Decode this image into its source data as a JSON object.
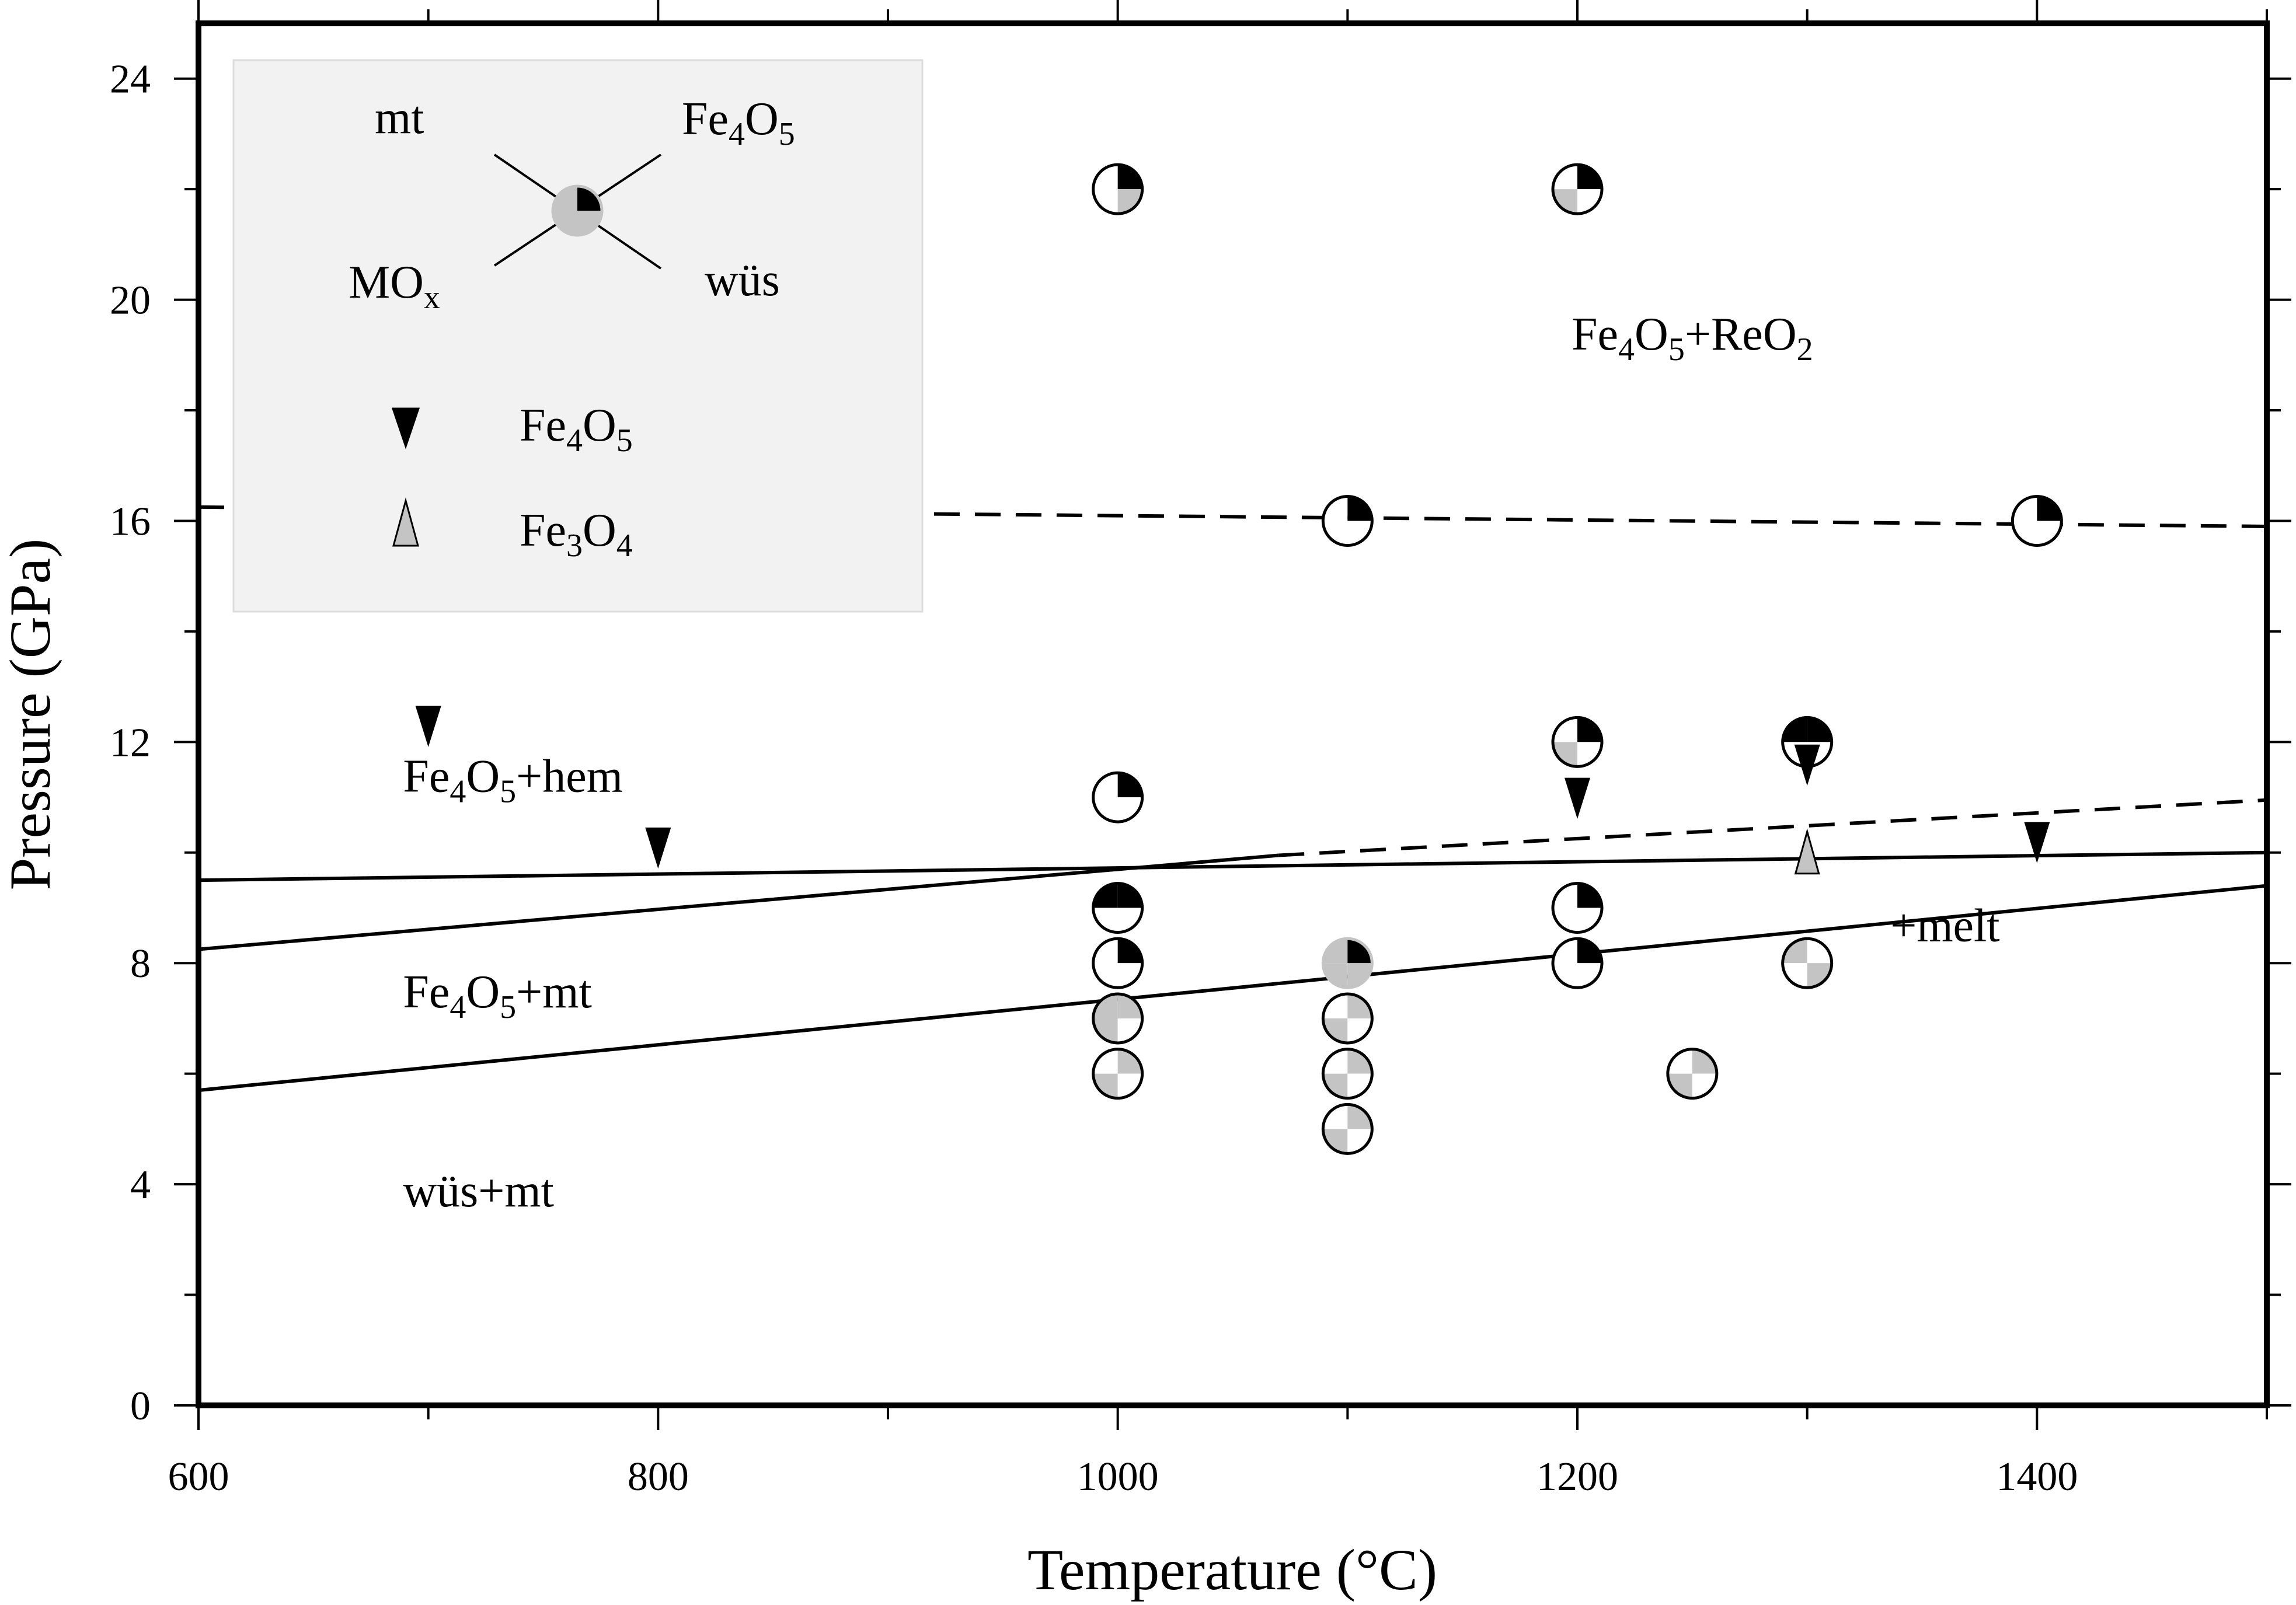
{
  "chart_data": {
    "type": "scatter",
    "xlabel": "Temperature (°C)",
    "ylabel": "Pressure (GPa)",
    "xlim": [
      600,
      1500
    ],
    "ylim": [
      0,
      25
    ],
    "xticks": [
      600,
      800,
      1000,
      1200,
      1400
    ],
    "yticks": [
      0,
      4,
      8,
      12,
      16,
      20,
      24
    ],
    "grid": false,
    "legend": {
      "placement": "top-left",
      "quadrant_labels": {
        "top_left": "mt",
        "top_right": "Fe4O5",
        "bottom_left": "MOx",
        "bottom_right": "wüs"
      },
      "markers": [
        {
          "symbol": "down-triangle",
          "color": "#000000",
          "label": "Fe4O5"
        },
        {
          "symbol": "up-triangle",
          "color": "#c4c4c4",
          "label": "Fe3O4"
        }
      ]
    },
    "colors": {
      "black": "#000000",
      "gray": "#c4c4c4",
      "white": "#ffffff",
      "legend_bg": "#f2f2f2"
    },
    "circle_quadrants_order": [
      "mt",
      "Fe4O5",
      "MOx",
      "wüs"
    ],
    "experiments": [
      {
        "T": 1000,
        "P": 22,
        "mt": "white",
        "Fe4O5": "black",
        "MOx": "white",
        "wüs": "gray"
      },
      {
        "T": 1200,
        "P": 22,
        "mt": "white",
        "Fe4O5": "black",
        "MOx": "gray",
        "wüs": "white"
      },
      {
        "T": 1100,
        "P": 16,
        "mt": "white",
        "Fe4O5": "black",
        "MOx": "white",
        "wüs": "white"
      },
      {
        "T": 1400,
        "P": 16,
        "mt": "white",
        "Fe4O5": "black",
        "MOx": "white",
        "wüs": "white"
      },
      {
        "T": 1200,
        "P": 12,
        "mt": "white",
        "Fe4O5": "black",
        "MOx": "gray",
        "wüs": "white"
      },
      {
        "T": 1300,
        "P": 12,
        "mt": "black",
        "Fe4O5": "black",
        "MOx": "white",
        "wüs": "white"
      },
      {
        "T": 1000,
        "P": 11,
        "mt": "white",
        "Fe4O5": "black",
        "MOx": "white",
        "wüs": "white"
      },
      {
        "T": 1000,
        "P": 9,
        "mt": "black",
        "Fe4O5": "black",
        "MOx": "white",
        "wüs": "white"
      },
      {
        "T": 1200,
        "P": 9,
        "mt": "white",
        "Fe4O5": "black",
        "MOx": "white",
        "wüs": "white"
      },
      {
        "T": 1000,
        "P": 8,
        "mt": "white",
        "Fe4O5": "black",
        "MOx": "white",
        "wüs": "white"
      },
      {
        "T": 1100,
        "P": 8,
        "mt": "gray",
        "Fe4O5": "black",
        "MOx": "gray",
        "wüs": "gray"
      },
      {
        "T": 1200,
        "P": 8,
        "mt": "white",
        "Fe4O5": "black",
        "MOx": "white",
        "wüs": "white"
      },
      {
        "T": 1300,
        "P": 8,
        "mt": "gray",
        "Fe4O5": "white",
        "MOx": "white",
        "wüs": "gray"
      },
      {
        "T": 1000,
        "P": 7,
        "mt": "gray",
        "Fe4O5": "gray",
        "MOx": "gray",
        "wüs": "white"
      },
      {
        "T": 1100,
        "P": 7,
        "mt": "white",
        "Fe4O5": "gray",
        "MOx": "gray",
        "wüs": "white"
      },
      {
        "T": 1000,
        "P": 6,
        "mt": "white",
        "Fe4O5": "gray",
        "MOx": "gray",
        "wüs": "white"
      },
      {
        "T": 1100,
        "P": 6,
        "mt": "white",
        "Fe4O5": "gray",
        "MOx": "gray",
        "wüs": "white"
      },
      {
        "T": 1250,
        "P": 6,
        "mt": "white",
        "Fe4O5": "gray",
        "MOx": "gray",
        "wüs": "white"
      },
      {
        "T": 1100,
        "P": 5,
        "mt": "white",
        "Fe4O5": "gray",
        "MOx": "gray",
        "wüs": "white"
      }
    ],
    "triangles": [
      {
        "T": 700,
        "P": 12.3,
        "type": "Fe4O5"
      },
      {
        "T": 800,
        "P": 10.1,
        "type": "Fe4O5"
      },
      {
        "T": 1200,
        "P": 11.0,
        "type": "Fe4O5"
      },
      {
        "T": 1300,
        "P": 11.6,
        "type": "Fe4O5"
      },
      {
        "T": 1400,
        "P": 10.2,
        "type": "Fe4O5"
      },
      {
        "T": 1300,
        "P": 10.0,
        "type": "Fe3O4"
      }
    ],
    "boundaries": [
      {
        "style": "dashed",
        "points": [
          [
            600,
            16.25
          ],
          [
            1500,
            15.9
          ]
        ]
      },
      {
        "style": "solid",
        "points": [
          [
            600,
            9.5
          ],
          [
            1500,
            10.0
          ]
        ]
      },
      {
        "style": "solid",
        "points": [
          [
            600,
            8.25
          ],
          [
            1070,
            9.95
          ]
        ]
      },
      {
        "style": "dashed",
        "points": [
          [
            1070,
            9.95
          ],
          [
            1500,
            10.95
          ]
        ]
      },
      {
        "style": "solid",
        "points": [
          [
            600,
            5.7
          ],
          [
            1500,
            9.4
          ]
        ]
      }
    ],
    "region_labels": [
      {
        "text": "Fe4O5+ReO2",
        "T": 1250,
        "P": 19.1
      },
      {
        "text": "Fe4O5+hem",
        "T": 689,
        "P": 11.1
      },
      {
        "text": "Fe4O5+mt",
        "T": 689,
        "P": 7.2
      },
      {
        "text": "wüs+mt",
        "T": 689,
        "P": 3.6
      },
      {
        "text": "+melt",
        "T": 1360,
        "P": 8.4
      }
    ]
  }
}
